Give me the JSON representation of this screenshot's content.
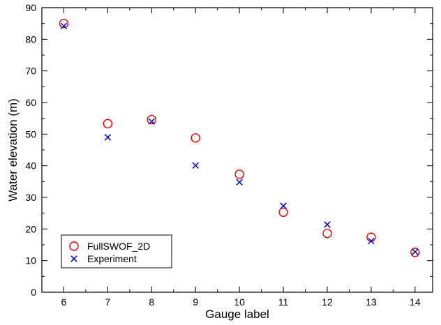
{
  "chart_data": {
    "type": "scatter",
    "title": "",
    "xlabel": "Gauge label",
    "ylabel": "Water elevation (m)",
    "xlim": [
      5.5,
      14.4
    ],
    "ylim": [
      0,
      90
    ],
    "xticks": [
      "6",
      "7",
      "8",
      "9",
      "10",
      "11",
      "12",
      "13",
      "14"
    ],
    "yticks": [
      "0",
      "10",
      "20",
      "30",
      "40",
      "50",
      "60",
      "70",
      "80",
      "90"
    ],
    "grid": false,
    "legend_position": "bottom-left",
    "series": [
      {
        "name": "FullSWOF_2D",
        "marker": "circle",
        "color": "#e00000",
        "x": [
          6,
          7,
          8,
          9,
          10,
          11,
          12,
          13,
          14
        ],
        "y": [
          85.0,
          53.3,
          54.6,
          48.8,
          37.3,
          25.3,
          18.6,
          17.4,
          12.6
        ]
      },
      {
        "name": "Experiment",
        "marker": "x",
        "color": "#0000cc",
        "x": [
          6,
          7,
          8,
          9,
          10,
          11,
          12,
          13,
          14
        ],
        "y": [
          84.2,
          49.0,
          54.0,
          40.1,
          34.8,
          27.3,
          21.4,
          16.2,
          12.8
        ]
      }
    ]
  }
}
